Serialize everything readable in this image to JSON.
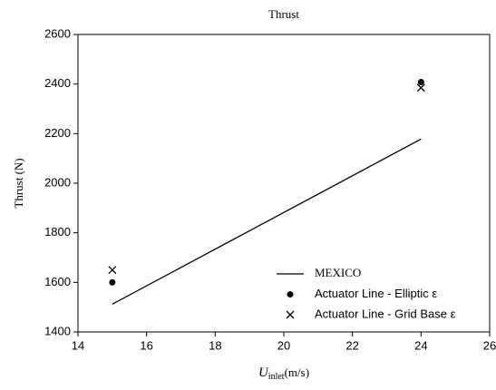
{
  "chart_data": {
    "type": "scatter",
    "title": "Thrust",
    "x_label": {
      "symbol": "U",
      "subscript": "inlet",
      "unit": "(m/s)"
    },
    "y_label": "Thrust (N)",
    "xlim": [
      14,
      26
    ],
    "xticks": [
      14,
      16,
      18,
      20,
      22,
      24,
      26
    ],
    "ylim": [
      1400,
      2600
    ],
    "yticks": [
      1400,
      1600,
      1800,
      2000,
      2200,
      2400,
      2600
    ],
    "legend": "lower right",
    "series": [
      {
        "name": "MEXICO",
        "style": "line",
        "color": "#000000",
        "x": [
          15,
          24
        ],
        "values": [
          1512,
          2178
        ]
      },
      {
        "name": "Actuator Line - Elliptic ε",
        "style": "dot",
        "color": "#000000",
        "x": [
          15,
          24
        ],
        "values": [
          1600,
          2408
        ]
      },
      {
        "name": "Actuator Line - Grid Base ε",
        "style": "cross",
        "color": "#000000",
        "x": [
          15,
          24
        ],
        "values": [
          1650,
          2385
        ]
      }
    ]
  }
}
